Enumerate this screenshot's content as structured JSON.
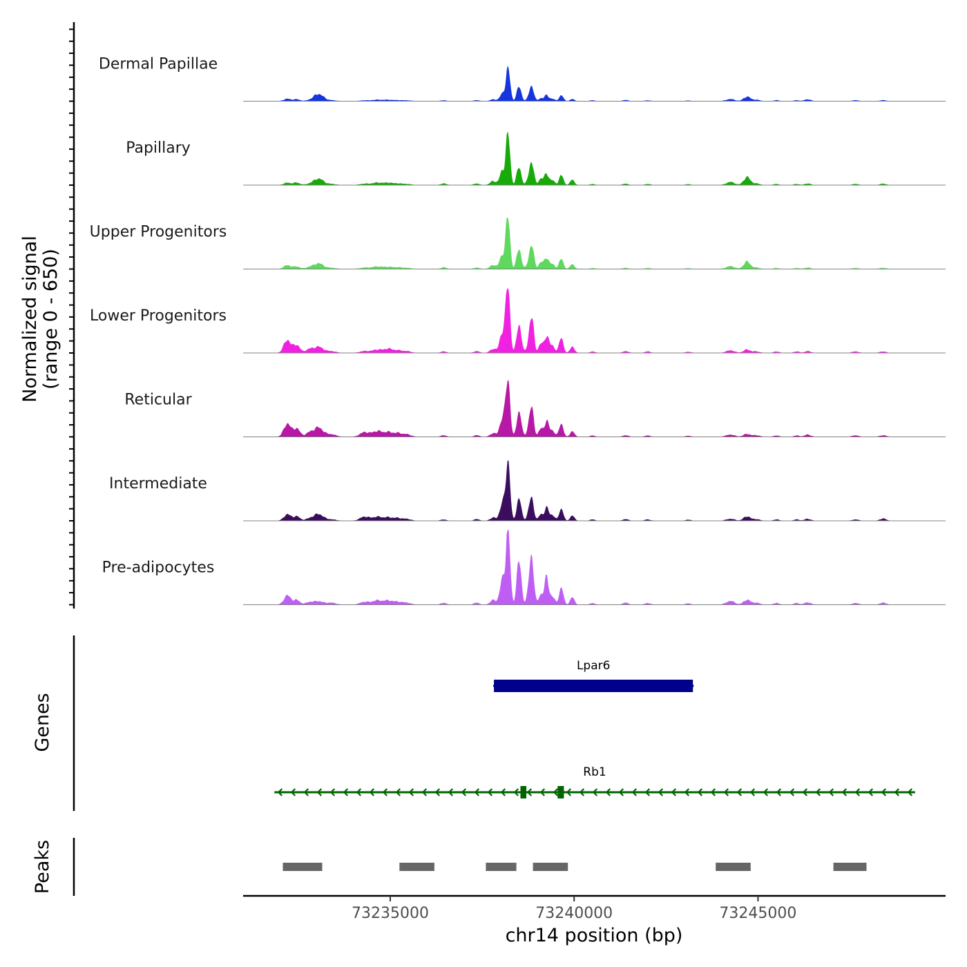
{
  "chart_data": {
    "type": "area",
    "title": "",
    "ylabel_line1": "Normalized signal",
    "ylabel_line2": "(range 0 - 650)",
    "ylim": [
      0,
      650
    ],
    "xlabel": "chr14 position (bp)",
    "xlim": [
      73231000,
      73250100
    ],
    "xticks": [
      {
        "value": 73235000,
        "label": "73235000"
      },
      {
        "value": 73240000,
        "label": "73240000"
      },
      {
        "value": 73245000,
        "label": "73245000"
      }
    ],
    "signal_start": 73231000,
    "signal_end": 73250100,
    "peak_template": [
      {
        "center": 73232200,
        "width": 90,
        "weight": 0.15
      },
      {
        "center": 73232450,
        "width": 90,
        "weight": 0.12
      },
      {
        "center": 73232800,
        "width": 100,
        "weight": 0.06
      },
      {
        "center": 73233050,
        "width": 130,
        "weight": 0.22
      },
      {
        "center": 73233400,
        "width": 120,
        "weight": 0.04
      },
      {
        "center": 73234300,
        "width": 120,
        "weight": 0.05
      },
      {
        "center": 73234650,
        "width": 140,
        "weight": 0.08
      },
      {
        "center": 73234950,
        "width": 110,
        "weight": 0.07
      },
      {
        "center": 73235200,
        "width": 110,
        "weight": 0.06
      },
      {
        "center": 73235450,
        "width": 110,
        "weight": 0.04
      },
      {
        "center": 73236450,
        "width": 70,
        "weight": 0.04
      },
      {
        "center": 73237350,
        "width": 70,
        "weight": 0.05
      },
      {
        "center": 73237800,
        "width": 80,
        "weight": 0.1
      },
      {
        "center": 73238050,
        "width": 70,
        "weight": 0.35
      },
      {
        "center": 73238200,
        "width": 55,
        "weight": 1.0
      },
      {
        "center": 73238500,
        "width": 60,
        "weight": 0.45
      },
      {
        "center": 73238800,
        "width": 70,
        "weight": 0.2
      },
      {
        "center": 73238850,
        "width": 55,
        "weight": 0.38
      },
      {
        "center": 73239100,
        "width": 60,
        "weight": 0.15
      },
      {
        "center": 73239250,
        "width": 55,
        "weight": 0.28
      },
      {
        "center": 73239400,
        "width": 70,
        "weight": 0.12
      },
      {
        "center": 73239650,
        "width": 55,
        "weight": 0.25
      },
      {
        "center": 73239950,
        "width": 55,
        "weight": 0.12
      },
      {
        "center": 73240500,
        "width": 60,
        "weight": 0.04
      },
      {
        "center": 73241400,
        "width": 70,
        "weight": 0.05
      },
      {
        "center": 73242000,
        "width": 70,
        "weight": 0.04
      },
      {
        "center": 73243100,
        "width": 70,
        "weight": 0.03
      },
      {
        "center": 73244250,
        "width": 110,
        "weight": 0.06
      },
      {
        "center": 73244700,
        "width": 90,
        "weight": 0.16
      },
      {
        "center": 73244950,
        "width": 90,
        "weight": 0.05
      },
      {
        "center": 73245500,
        "width": 70,
        "weight": 0.04
      },
      {
        "center": 73246050,
        "width": 70,
        "weight": 0.04
      },
      {
        "center": 73246350,
        "width": 80,
        "weight": 0.06
      },
      {
        "center": 73247650,
        "width": 80,
        "weight": 0.04
      },
      {
        "center": 73248400,
        "width": 80,
        "weight": 0.05
      }
    ],
    "series": [
      {
        "name": "Dermal Papillae",
        "color": "#1535de",
        "max": 280,
        "scale": [
          0.45,
          0.45,
          0.3,
          1.0,
          0.6,
          0.4,
          0.5,
          0.5,
          0.4,
          0.5,
          0.6,
          0.5,
          0.5,
          0.6,
          1.0,
          0.95,
          0.6,
          1.0,
          0.6,
          0.6,
          0.6,
          0.7,
          0.5,
          0.6,
          0.6,
          0.5,
          0.5,
          1.0,
          0.85,
          0.8,
          0.6,
          0.6,
          0.9,
          0.6,
          0.5
        ]
      },
      {
        "name": "Papillary",
        "color": "#17aa09",
        "max": 420,
        "scale": [
          0.3,
          0.4,
          0.3,
          0.6,
          0.5,
          0.5,
          0.6,
          0.6,
          0.5,
          0.5,
          0.8,
          0.6,
          0.8,
          0.8,
          1.0,
          0.8,
          0.8,
          0.95,
          0.9,
          0.8,
          0.8,
          0.8,
          0.9,
          0.5,
          0.5,
          0.5,
          0.5,
          1.0,
          1.0,
          0.6,
          0.5,
          0.5,
          0.5,
          0.5,
          0.5
        ]
      },
      {
        "name": "Upper Progenitors",
        "color": "#5ed95e",
        "max": 430,
        "scale": [
          0.5,
          0.4,
          0.5,
          0.5,
          0.5,
          0.5,
          0.6,
          0.5,
          0.5,
          0.5,
          0.8,
          0.5,
          0.8,
          0.8,
          1.0,
          0.9,
          0.8,
          0.95,
          0.9,
          0.8,
          0.8,
          0.8,
          0.8,
          0.4,
          0.4,
          0.4,
          0.4,
          0.9,
          0.9,
          0.5,
          0.4,
          0.4,
          0.4,
          0.4,
          0.4
        ]
      },
      {
        "name": "Lower Progenitors",
        "color": "#f021e0",
        "max": 580,
        "scale": [
          1.3,
          1.0,
          0.8,
          0.4,
          0.6,
          0.5,
          0.6,
          0.8,
          0.6,
          0.6,
          0.5,
          0.5,
          0.6,
          0.9,
          1.0,
          0.95,
          0.9,
          1.0,
          0.9,
          0.9,
          0.9,
          0.9,
          0.8,
          0.5,
          0.5,
          0.5,
          0.5,
          0.6,
          0.3,
          0.4,
          0.5,
          0.5,
          0.4,
          0.5,
          0.4
        ]
      },
      {
        "name": "Reticular",
        "color": "#b818a6",
        "max": 510,
        "scale": [
          1.5,
          1.2,
          1.0,
          0.7,
          1.0,
          1.5,
          1.2,
          1.0,
          1.0,
          1.0,
          0.6,
          0.5,
          0.6,
          0.9,
          1.0,
          0.95,
          0.9,
          0.9,
          0.9,
          0.9,
          0.9,
          0.9,
          0.8,
          0.5,
          0.5,
          0.5,
          0.5,
          0.6,
          0.3,
          0.5,
          0.5,
          0.5,
          0.6,
          0.6,
          0.5
        ]
      },
      {
        "name": "Intermediate",
        "color": "#3a0d5e",
        "max": 520,
        "scale": [
          0.7,
          0.6,
          0.5,
          0.5,
          0.5,
          1.3,
          0.8,
          0.7,
          0.7,
          0.7,
          0.5,
          0.5,
          0.5,
          0.8,
          1.0,
          0.8,
          0.7,
          0.7,
          0.7,
          0.7,
          0.8,
          0.8,
          0.7,
          0.5,
          0.5,
          0.5,
          0.5,
          0.5,
          0.45,
          0.5,
          0.5,
          0.5,
          0.5,
          0.5,
          0.7
        ]
      },
      {
        "name": "Pre-adipocytes",
        "color": "#bf5ef5",
        "max": 650,
        "scale": [
          0.8,
          0.5,
          0.5,
          0.2,
          0.6,
          0.7,
          0.7,
          0.7,
          0.6,
          0.6,
          0.6,
          0.5,
          0.6,
          0.9,
          1.0,
          1.25,
          1.0,
          1.3,
          0.9,
          1.2,
          0.9,
          0.9,
          0.8,
          0.5,
          0.5,
          0.5,
          0.5,
          0.8,
          0.4,
          0.5,
          0.5,
          0.5,
          0.5,
          0.5,
          0.5
        ]
      }
    ],
    "genes_label": "Genes",
    "genes": [
      {
        "name": "Lpar6",
        "start": 73237800,
        "end": 73243250,
        "strand": "-",
        "color": "#00008b",
        "exons": [
          [
            73237820,
            73243230
          ]
        ]
      },
      {
        "name": "Rb1",
        "start": 73231850,
        "end": 73249270,
        "strand": "-",
        "color": "#006400",
        "exons": [
          [
            73238540,
            73238700
          ],
          [
            73239550,
            73239720
          ]
        ]
      }
    ],
    "peaks_label": "Peaks",
    "peaks_color": "#666666",
    "peaks": [
      [
        73232080,
        73233150
      ],
      [
        73235250,
        73236200
      ],
      [
        73237600,
        73238430
      ],
      [
        73238880,
        73239830
      ],
      [
        73243850,
        73244800
      ],
      [
        73247050,
        73247950
      ]
    ]
  }
}
